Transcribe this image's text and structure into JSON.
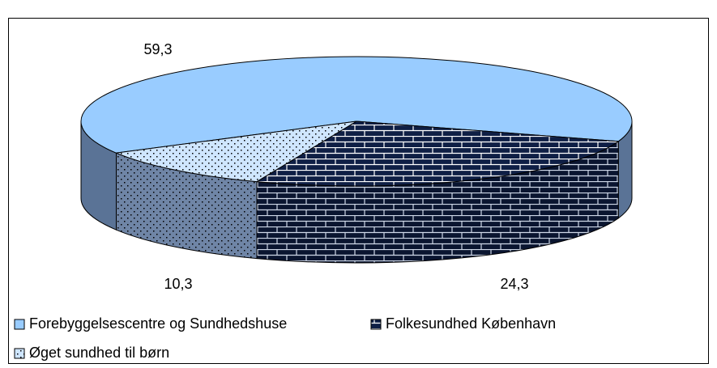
{
  "chart_data": {
    "type": "pie3d",
    "categories": [
      "Forebyggelsescentre og Sundhedshuse",
      "Folkesundhed København",
      "Øget sundhed til børn"
    ],
    "values": [
      59.3,
      24.3,
      10.3
    ],
    "value_labels": [
      "59,3",
      "24,3",
      "10,3"
    ],
    "colors": [
      "#99ccff",
      "#0f1f45",
      "#cfe6ff"
    ],
    "legend": "bottom"
  }
}
